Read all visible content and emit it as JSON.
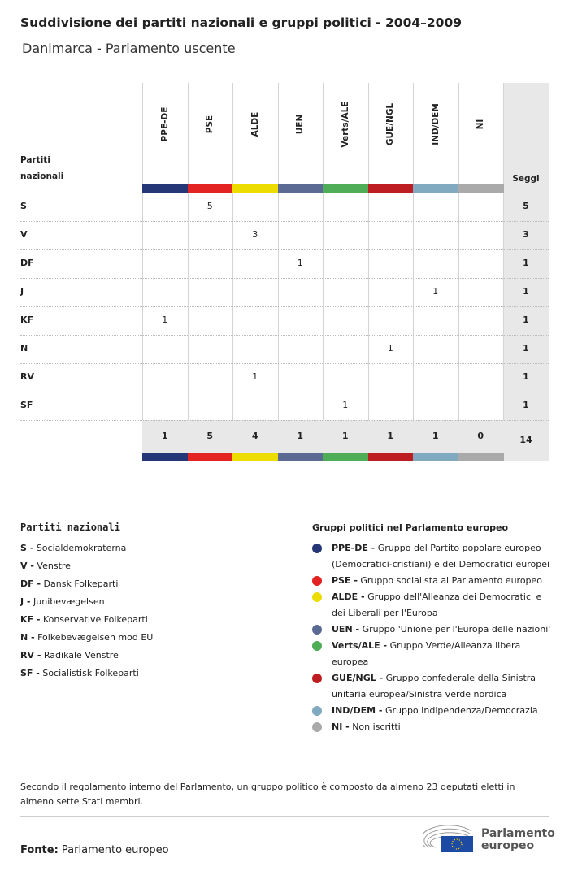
{
  "title": "Suddivisione dei partiti nazionali e gruppi politici - 2004–2009",
  "subtitle": "Danimarca - Parlamento uscente",
  "chart_data": {
    "type": "table",
    "row_header": "Partiti nazionali",
    "total_header": "Seggi",
    "columns": [
      {
        "name": "PPE-DE",
        "color": "#263778"
      },
      {
        "name": "PSE",
        "color": "#e32322"
      },
      {
        "name": "ALDE",
        "color": "#ecdc00"
      },
      {
        "name": "UEN",
        "color": "#5a6a92"
      },
      {
        "name": "Verts/ALE",
        "color": "#4fac57"
      },
      {
        "name": "GUE/NGL",
        "color": "#be1e22"
      },
      {
        "name": "IND/DEM",
        "color": "#81a9c0"
      },
      {
        "name": "NI",
        "color": "#aaaaaa"
      }
    ],
    "rows": [
      {
        "party": "S",
        "values": [
          null,
          5,
          null,
          null,
          null,
          null,
          null,
          null
        ],
        "total": 5
      },
      {
        "party": "V",
        "values": [
          null,
          null,
          3,
          null,
          null,
          null,
          null,
          null
        ],
        "total": 3
      },
      {
        "party": "DF",
        "values": [
          null,
          null,
          null,
          1,
          null,
          null,
          null,
          null
        ],
        "total": 1
      },
      {
        "party": "J",
        "values": [
          null,
          null,
          null,
          null,
          null,
          null,
          1,
          null
        ],
        "total": 1
      },
      {
        "party": "KF",
        "values": [
          1,
          null,
          null,
          null,
          null,
          null,
          null,
          null
        ],
        "total": 1
      },
      {
        "party": "N",
        "values": [
          null,
          null,
          null,
          null,
          null,
          1,
          null,
          null
        ],
        "total": 1
      },
      {
        "party": "RV",
        "values": [
          null,
          null,
          1,
          null,
          null,
          null,
          null,
          null
        ],
        "total": 1
      },
      {
        "party": "SF",
        "values": [
          null,
          null,
          null,
          null,
          1,
          null,
          null,
          null
        ],
        "total": 1
      }
    ],
    "column_totals": [
      1,
      5,
      4,
      1,
      1,
      1,
      1,
      0
    ],
    "grand_total": 14
  },
  "parties_legend": {
    "title": "Partiti nazionali",
    "items": [
      {
        "abbr": "S -",
        "name": "Socialdemokraterna"
      },
      {
        "abbr": "V -",
        "name": "Venstre"
      },
      {
        "abbr": "DF -",
        "name": "Dansk Folkeparti"
      },
      {
        "abbr": "J -",
        "name": "Junibevægelsen"
      },
      {
        "abbr": "KF -",
        "name": "Konservative Folkeparti"
      },
      {
        "abbr": "N -",
        "name": "Folkebevægelsen mod EU"
      },
      {
        "abbr": "RV -",
        "name": "Radikale Venstre"
      },
      {
        "abbr": "SF -",
        "name": "Socialistisk Folkeparti"
      }
    ]
  },
  "groups_legend": {
    "title": "Gruppi politici nel Parlamento europeo",
    "items": [
      {
        "abbr": "PPE-DE -",
        "name": "Gruppo del Partito popolare europeo (Democratici-cristiani) e dei Democratici europei",
        "color": "#263778"
      },
      {
        "abbr": "PSE -",
        "name": "Gruppo socialista al Parlamento europeo",
        "color": "#e32322"
      },
      {
        "abbr": "ALDE -",
        "name": "Gruppo dell'Alleanza dei Democratici e dei Liberali per l'Europa",
        "color": "#ecdc00"
      },
      {
        "abbr": "UEN -",
        "name": "Gruppo 'Unione per l'Europa delle nazioni'",
        "color": "#5a6a92"
      },
      {
        "abbr": "Verts/ALE -",
        "name": "Gruppo Verde/Alleanza libera europea",
        "color": "#4fac57"
      },
      {
        "abbr": "GUE/NGL -",
        "name": "Gruppo confederale della Sinistra unitaria europea/Sinistra verde nordica",
        "color": "#be1e22"
      },
      {
        "abbr": "IND/DEM -",
        "name": "Gruppo Indipendenza/Democrazia",
        "color": "#81a9c0"
      },
      {
        "abbr": "NI -",
        "name": "Non iscritti",
        "color": "#aaaaaa"
      }
    ]
  },
  "footnote": "Secondo il regolamento interno del Parlamento, un gruppo politico è composto da almeno 23 deputati eletti in almeno sette Stati membri.",
  "source_label": "Fonte:",
  "source": "Parlamento europeo",
  "logo_text": "Parlamento europeo"
}
